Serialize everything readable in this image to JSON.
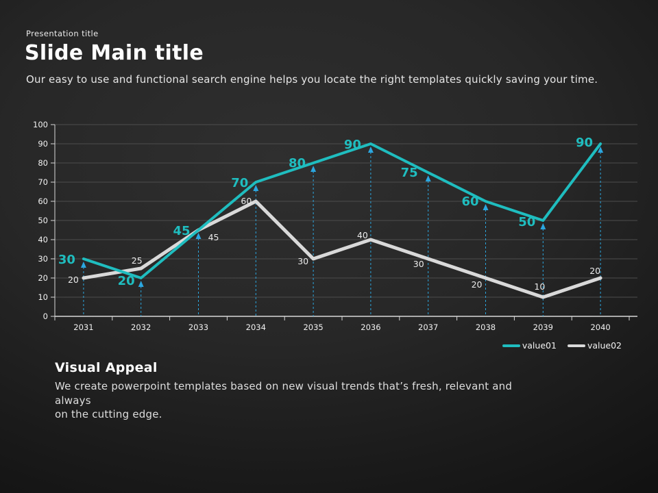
{
  "slide": {
    "eyebrow": "Presentation title",
    "title": "Slide Main title",
    "subtitle": "Our easy to use and functional search engine helps you locate the right templates quickly saving your time.",
    "footer": {
      "heading": "Visual Appeal",
      "body_line1": "We create powerpoint templates based on new visual trends that’s fresh, relevant and always",
      "body_line2": "on the cutting edge."
    }
  },
  "chart_data": {
    "type": "line",
    "title": "",
    "xlabel": "",
    "ylabel": "",
    "categories": [
      "2031",
      "2032",
      "2033",
      "2034",
      "2035",
      "2036",
      "2037",
      "2038",
      "2039",
      "2040"
    ],
    "series": [
      {
        "name": "value01",
        "values": [
          30,
          20,
          45,
          70,
          80,
          90,
          75,
          60,
          50,
          90
        ],
        "color": "#1FBDBF"
      },
      {
        "name": "value02",
        "values": [
          20,
          25,
          45,
          60,
          30,
          40,
          30,
          20,
          10,
          20
        ],
        "color": "#D9D9D9"
      }
    ],
    "ylim": [
      0,
      100
    ],
    "ytick_step": 10,
    "grid": true,
    "legend_position": "bottom-right",
    "colors": {
      "callout": "#2BA7E0",
      "gridline": "#4d4d4d",
      "axis": "#d9d9d9",
      "tick_label": "#f2f2f2",
      "series2_label": "#ebebeb"
    }
  }
}
